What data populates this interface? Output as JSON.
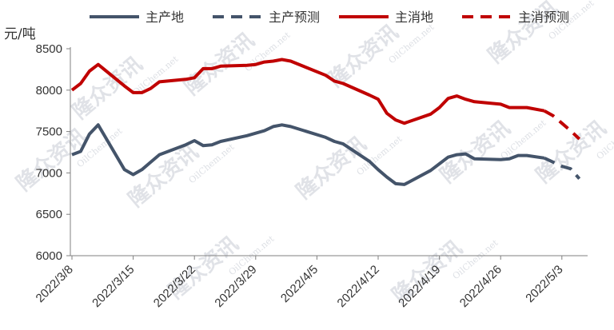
{
  "chart_data": {
    "type": "line",
    "ylabel": "元/吨",
    "ylim": [
      6000,
      8500
    ],
    "yticks": [
      6000,
      6500,
      7000,
      7500,
      8000,
      8500
    ],
    "xticks": [
      "2022/3/8",
      "2022/3/15",
      "2022/3/22",
      "2022/3/29",
      "2022/4/5",
      "2022/4/12",
      "2022/4/19",
      "2022/4/26",
      "2022/5/3"
    ],
    "legend_position": "top",
    "watermark": "隆众资讯",
    "watermark_url": "OilChem.net",
    "series": [
      {
        "name": "主产地",
        "color": "#44546a",
        "dash": "solid",
        "points": [
          [
            "2022/3/8",
            7220
          ],
          [
            "2022/3/9",
            7260
          ],
          [
            "2022/3/10",
            7470
          ],
          [
            "2022/3/11",
            7580
          ],
          [
            "2022/3/14",
            7040
          ],
          [
            "2022/3/15",
            6980
          ],
          [
            "2022/3/16",
            7040
          ],
          [
            "2022/3/17",
            7130
          ],
          [
            "2022/3/18",
            7220
          ],
          [
            "2022/3/21",
            7340
          ],
          [
            "2022/3/22",
            7390
          ],
          [
            "2022/3/23",
            7330
          ],
          [
            "2022/3/24",
            7340
          ],
          [
            "2022/3/25",
            7380
          ],
          [
            "2022/3/28",
            7450
          ],
          [
            "2022/3/29",
            7480
          ],
          [
            "2022/3/30",
            7510
          ],
          [
            "2022/3/31",
            7560
          ],
          [
            "2022/4/1",
            7580
          ],
          [
            "2022/4/2",
            7560
          ],
          [
            "2022/4/6",
            7430
          ],
          [
            "2022/4/7",
            7380
          ],
          [
            "2022/4/8",
            7350
          ],
          [
            "2022/4/11",
            7140
          ],
          [
            "2022/4/12",
            7040
          ],
          [
            "2022/4/13",
            6950
          ],
          [
            "2022/4/14",
            6870
          ],
          [
            "2022/4/15",
            6860
          ],
          [
            "2022/4/18",
            7030
          ],
          [
            "2022/4/19",
            7110
          ],
          [
            "2022/4/20",
            7190
          ],
          [
            "2022/4/21",
            7220
          ],
          [
            "2022/4/22",
            7230
          ],
          [
            "2022/4/23",
            7170
          ],
          [
            "2022/4/26",
            7160
          ],
          [
            "2022/4/27",
            7170
          ],
          [
            "2022/4/28",
            7210
          ],
          [
            "2022/4/29",
            7210
          ],
          [
            "2022/5/1",
            7180
          ]
        ]
      },
      {
        "name": "主产预测",
        "color": "#44546a",
        "dash": "dashed",
        "points": [
          [
            "2022/5/1",
            7180
          ],
          [
            "2022/5/2",
            7130
          ],
          [
            "2022/5/3",
            7080
          ],
          [
            "2022/5/4",
            7050
          ],
          [
            "2022/5/5",
            6930
          ]
        ]
      },
      {
        "name": "主消地",
        "color": "#c00000",
        "dash": "solid",
        "points": [
          [
            "2022/3/8",
            8000
          ],
          [
            "2022/3/9",
            8080
          ],
          [
            "2022/3/10",
            8230
          ],
          [
            "2022/3/11",
            8310
          ],
          [
            "2022/3/14",
            8050
          ],
          [
            "2022/3/15",
            7970
          ],
          [
            "2022/3/16",
            7970
          ],
          [
            "2022/3/17",
            8020
          ],
          [
            "2022/3/18",
            8100
          ],
          [
            "2022/3/21",
            8130
          ],
          [
            "2022/3/22",
            8150
          ],
          [
            "2022/3/23",
            8260
          ],
          [
            "2022/3/24",
            8260
          ],
          [
            "2022/3/25",
            8290
          ],
          [
            "2022/3/28",
            8300
          ],
          [
            "2022/3/29",
            8310
          ],
          [
            "2022/3/30",
            8340
          ],
          [
            "2022/3/31",
            8350
          ],
          [
            "2022/4/1",
            8370
          ],
          [
            "2022/4/2",
            8350
          ],
          [
            "2022/4/6",
            8180
          ],
          [
            "2022/4/7",
            8110
          ],
          [
            "2022/4/8",
            8080
          ],
          [
            "2022/4/11",
            7940
          ],
          [
            "2022/4/12",
            7890
          ],
          [
            "2022/4/13",
            7720
          ],
          [
            "2022/4/14",
            7640
          ],
          [
            "2022/4/15",
            7600
          ],
          [
            "2022/4/18",
            7710
          ],
          [
            "2022/4/19",
            7790
          ],
          [
            "2022/4/20",
            7900
          ],
          [
            "2022/4/21",
            7930
          ],
          [
            "2022/4/22",
            7890
          ],
          [
            "2022/4/23",
            7860
          ],
          [
            "2022/4/26",
            7830
          ],
          [
            "2022/4/27",
            7790
          ],
          [
            "2022/4/28",
            7790
          ],
          [
            "2022/4/29",
            7790
          ],
          [
            "2022/5/1",
            7750
          ]
        ]
      },
      {
        "name": "主消预测",
        "color": "#c00000",
        "dash": "dashed",
        "points": [
          [
            "2022/5/1",
            7750
          ],
          [
            "2022/5/2",
            7690
          ],
          [
            "2022/5/3",
            7600
          ],
          [
            "2022/5/4",
            7510
          ],
          [
            "2022/5/5",
            7410
          ]
        ]
      }
    ]
  }
}
